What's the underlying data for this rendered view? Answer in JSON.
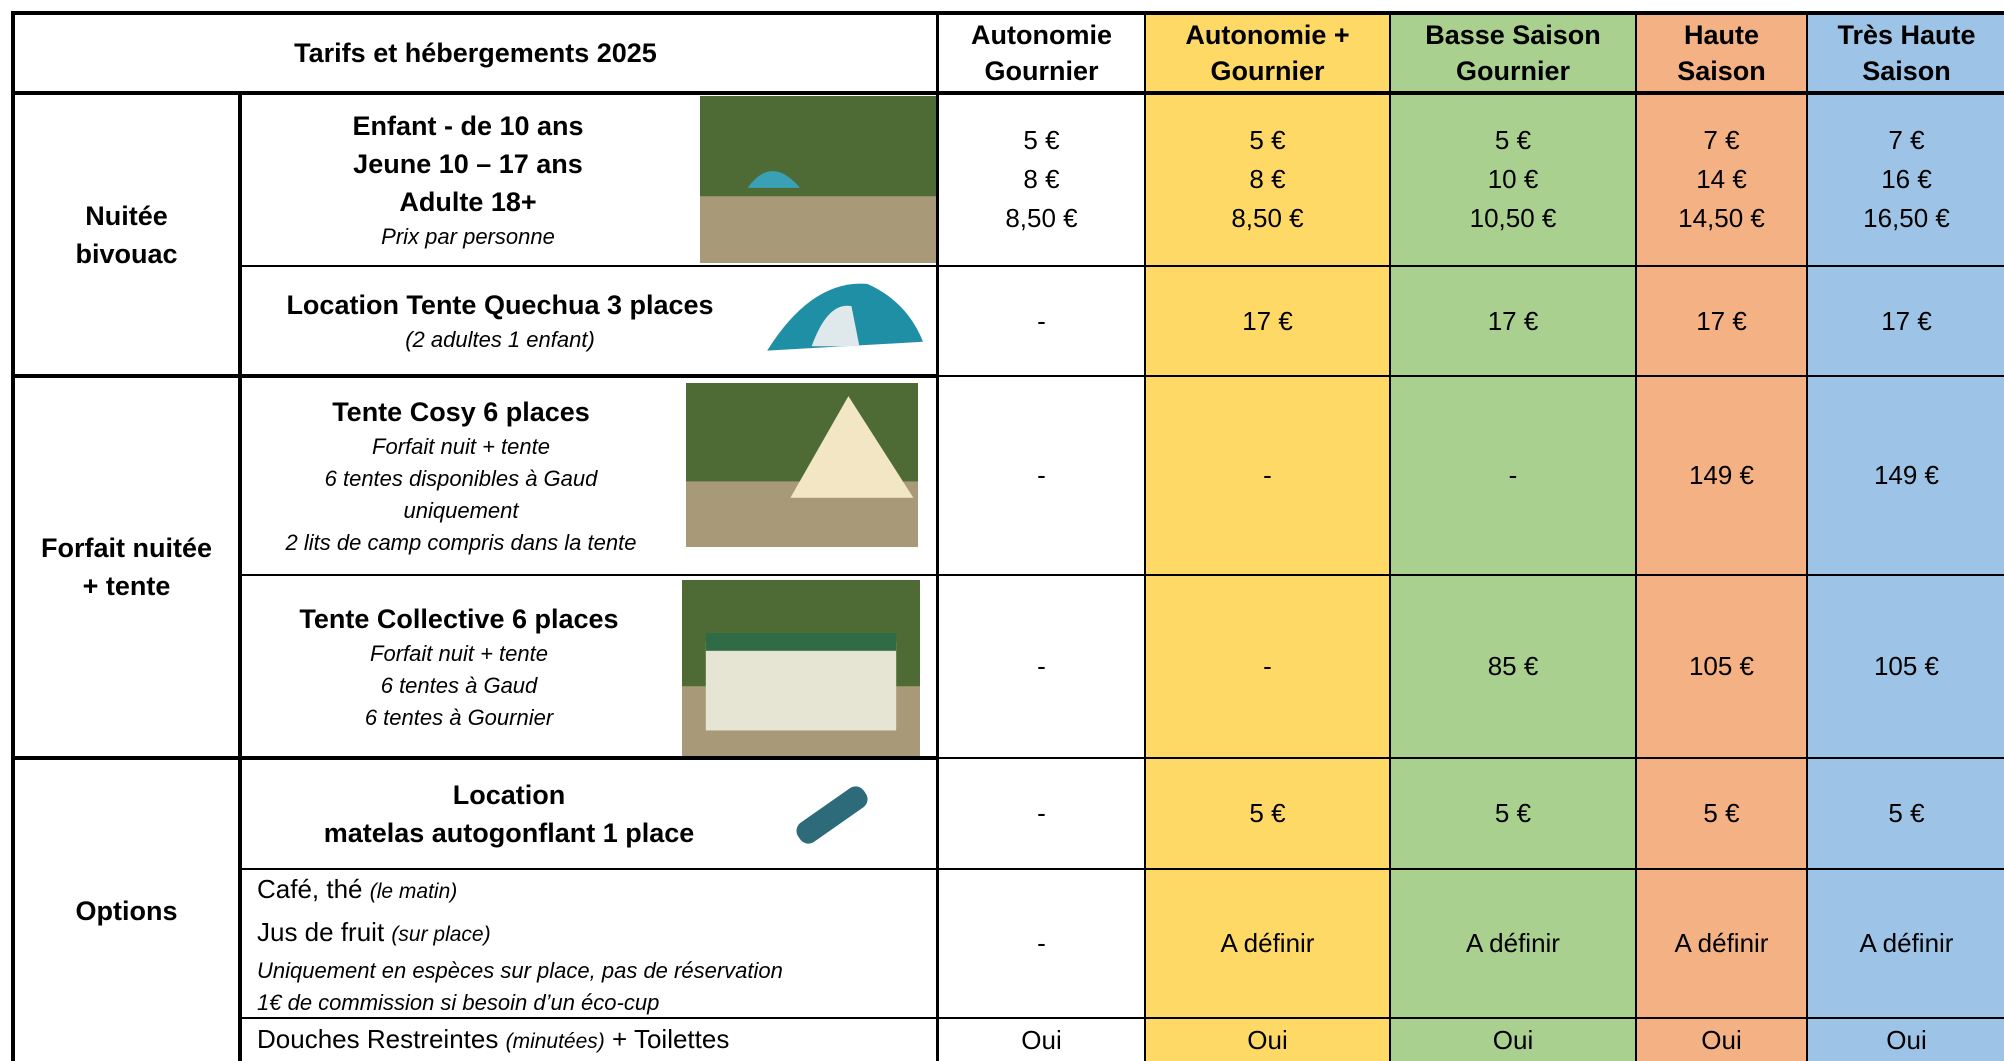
{
  "title": "Tarifs et hébergements 2025",
  "columns": [
    [
      "Autonomie",
      "Gournier"
    ],
    [
      "Autonomie +",
      "Gournier"
    ],
    [
      "Basse Saison",
      "Gournier"
    ],
    [
      "Haute",
      "Saison"
    ],
    [
      "Très Haute",
      "Saison"
    ]
  ],
  "column_colors": [
    "#ffffff",
    "#ffd966",
    "#a9d08e",
    "#f4b183",
    "#9dc3e6"
  ],
  "sections": [
    {
      "label": [
        "Nuitée",
        "bivouac"
      ],
      "rows": [
        {
          "title": [
            "Enfant - de 10 ans",
            "Jeune 10 – 17 ans",
            "Adulte 18+"
          ],
          "notes": [
            "Prix par personne"
          ],
          "values": [
            [
              "5 €",
              "8 €",
              "8,50 €"
            ],
            [
              "5 €",
              "8 €",
              "8,50 €"
            ],
            [
              "5 €",
              "10 €",
              "10,50 €"
            ],
            [
              "7 €",
              "14 €",
              "14,50 €"
            ],
            [
              "7 €",
              "16 €",
              "16,50 €"
            ]
          ]
        },
        {
          "title": [
            "Location Tente Quechua 3 places"
          ],
          "notes": [
            "(2 adultes 1 enfant)"
          ],
          "values": [
            [
              "-"
            ],
            [
              "17 €"
            ],
            [
              "17 €"
            ],
            [
              "17 €"
            ],
            [
              "17 €"
            ]
          ]
        }
      ]
    },
    {
      "label": [
        "Forfait nuitée",
        "+ tente"
      ],
      "rows": [
        {
          "title": [
            "Tente Cosy 6 places"
          ],
          "notes": [
            "Forfait nuit + tente",
            "6 tentes disponibles à Gaud",
            "uniquement",
            "2 lits de camp compris dans la tente"
          ],
          "values": [
            [
              "-"
            ],
            [
              "-"
            ],
            [
              "-"
            ],
            [
              "149 €"
            ],
            [
              "149 €"
            ]
          ]
        },
        {
          "title": [
            "Tente Collective 6 places"
          ],
          "notes": [
            "Forfait nuit + tente",
            "6 tentes à Gaud",
            "6 tentes à Gournier"
          ],
          "values": [
            [
              "-"
            ],
            [
              "-"
            ],
            [
              "85 €"
            ],
            [
              "105 €"
            ],
            [
              "105 €"
            ]
          ]
        }
      ]
    },
    {
      "label": [
        "Options"
      ],
      "rows": [
        {
          "title": [
            "Location",
            "matelas autogonflant 1 place"
          ],
          "values": [
            [
              "-"
            ],
            [
              "5 €"
            ],
            [
              "5 €"
            ],
            [
              "5 €"
            ],
            [
              "5 €"
            ]
          ]
        },
        {
          "items": [
            {
              "text": "Café, thé",
              "note": "(le matin)"
            },
            {
              "text": "Jus de fruit",
              "note": "(sur place)"
            }
          ],
          "notes": [
            "Uniquement en espèces sur place, pas de réservation",
            "1€ de commission si besoin d’un éco-cup"
          ],
          "values": [
            [
              "-"
            ],
            [
              "A définir"
            ],
            [
              "A définir"
            ],
            [
              "A définir"
            ],
            [
              "A définir"
            ]
          ]
        },
        {
          "items": [
            {
              "text": "Douches Restreintes",
              "note": "(minutées)",
              "after": "+ Toilettes"
            }
          ],
          "values": [
            [
              "Oui"
            ],
            [
              "Oui"
            ],
            [
              "Oui"
            ],
            [
              "Oui"
            ],
            [
              "Oui"
            ]
          ]
        }
      ]
    }
  ]
}
